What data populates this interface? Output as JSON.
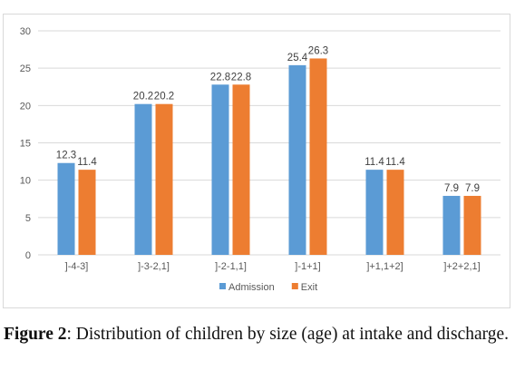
{
  "chart_data": {
    "type": "bar",
    "categories": [
      "]-4-3]",
      "]-3-2,1]",
      "]-2-1,1]",
      "]-1+1]",
      "]+1,1+2]",
      "]+2+2,1]"
    ],
    "series": [
      {
        "name": "Admission",
        "color": "#5b9bd5",
        "values": [
          12.3,
          20.2,
          22.8,
          25.4,
          11.4,
          7.9
        ],
        "labels": [
          "12.3",
          "20.2",
          "22.8",
          "25.4",
          "11.4",
          "7.9"
        ]
      },
      {
        "name": "Exit",
        "color": "#ed7d31",
        "values": [
          11.4,
          20.2,
          22.8,
          26.3,
          11.4,
          7.9
        ],
        "labels": [
          "11.4",
          "20.2",
          "22.8",
          "26.3",
          "11.4",
          "7.9"
        ]
      }
    ],
    "yticks": [
      0,
      5,
      10,
      15,
      20,
      25,
      30
    ],
    "ylim": [
      0,
      30
    ],
    "grid": true,
    "legend_position": "bottom",
    "data_labels": true
  },
  "caption": {
    "label": "Figure 2",
    "text": ": Distribution of children by size (age) at intake and discharge."
  }
}
